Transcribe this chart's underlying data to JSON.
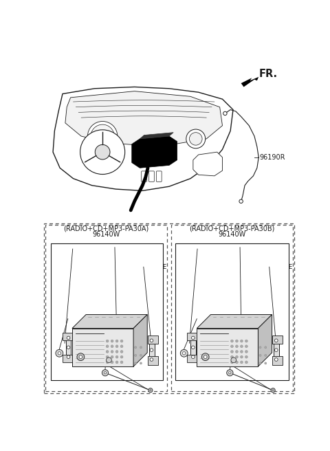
{
  "bg_color": "#ffffff",
  "lc": "#1a1a1a",
  "dc": "#555555",
  "fr_label": "FR.",
  "label_96190R": "96190R",
  "left_title1": "(RADIO+CD+MP3-PA30A)",
  "left_title2": "96140W",
  "right_title1": "(RADIO+CD+MP3-PA30B)",
  "right_title2": "96140W",
  "fs_label": 6.5,
  "fs_title": 7.0,
  "fs_fr": 10.5
}
